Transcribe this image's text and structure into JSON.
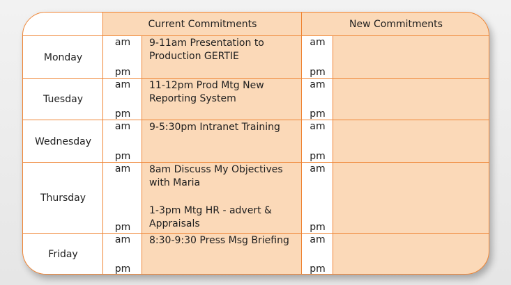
{
  "header": {
    "current": "Current Commitments",
    "new": "New Commitments"
  },
  "labels": {
    "am": "am",
    "pm": "pm"
  },
  "days": [
    {
      "name": "Monday",
      "am": "9-11am Presentation to Production GERTIE",
      "pm": ""
    },
    {
      "name": "Tuesday",
      "am": "11-12pm Prod Mtg New Reporting System",
      "pm": ""
    },
    {
      "name": "Wednesday",
      "am": "9-5:30pm Intranet Training",
      "pm": ""
    },
    {
      "name": "Thursday",
      "am": "8am Discuss My Objectives with Maria",
      "pm": "1-3pm Mtg HR - advert & Appraisals"
    },
    {
      "name": "Friday",
      "am": "8:30-9:30 Press Msg Briefing",
      "pm": ""
    }
  ],
  "colors": {
    "border": "#ef8433",
    "fill": "#fbd9b8"
  }
}
